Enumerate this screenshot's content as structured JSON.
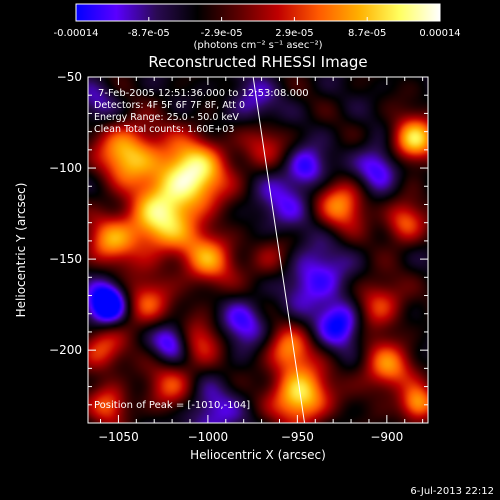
{
  "colorbar": {
    "tick_labels": [
      "-0.00014",
      "-8.7e-05",
      "-2.9e-05",
      "2.9e-05",
      "8.7e-05",
      "0.00014"
    ],
    "unit_label": "(photons cm⁻² s⁻¹ asec⁻²)",
    "colors": [
      "#0000ff",
      "#5a00ff",
      "#2a0a52",
      "#000000",
      "#5a0000",
      "#c00000",
      "#ff5a00",
      "#ffb000",
      "#ffff60",
      "#ffffff"
    ]
  },
  "chart_data": {
    "type": "heatmap",
    "title": "Reconstructed RHESSI Image",
    "xlabel": "Heliocentric X (arcsec)",
    "ylabel": "Heliocentric Y (arcsec)",
    "xlim": [
      -1067,
      -877
    ],
    "ylim": [
      -240,
      -50
    ],
    "x_ticks": [
      -1050,
      -1000,
      -950,
      -900
    ],
    "y_ticks": [
      -50,
      -100,
      -150,
      -200
    ],
    "x_tick_labels": [
      "−1050",
      "−1000",
      "−950",
      "−900"
    ],
    "y_tick_labels": [
      "−50",
      "−100",
      "−150",
      "−200"
    ],
    "info": [
      "7-Feb-2005 12:51:36.000 to 12:53:08.000",
      "Detectors: 4F 5F 6F 7F 8F, Att 0",
      "Energy Range: 25.0 - 50.0 keV",
      "Clean    Total counts: 1.60E+03"
    ],
    "peak_label": "Position of Peak = [-1010,-104]",
    "peak": [
      -1010,
      -104
    ],
    "limb_line": [
      [
        -975,
        -48
      ],
      [
        -946,
        -240
      ]
    ],
    "hotspots": [
      {
        "x": -1010,
        "y": -104,
        "amp": 1.0,
        "s": 14
      },
      {
        "x": -1045,
        "y": -92,
        "amp": 0.75,
        "s": 12
      },
      {
        "x": -1028,
        "y": -130,
        "amp": 0.8,
        "s": 13
      },
      {
        "x": -1000,
        "y": -150,
        "amp": 0.6,
        "s": 11
      },
      {
        "x": -1055,
        "y": -140,
        "amp": 0.55,
        "s": 10
      },
      {
        "x": -1035,
        "y": -175,
        "amp": 0.5,
        "s": 10
      },
      {
        "x": -1005,
        "y": -195,
        "amp": 0.45,
        "s": 9
      },
      {
        "x": -970,
        "y": -88,
        "amp": 0.35,
        "s": 10
      },
      {
        "x": -965,
        "y": -150,
        "amp": 0.3,
        "s": 9
      },
      {
        "x": -948,
        "y": -225,
        "amp": 0.9,
        "s": 11
      },
      {
        "x": -955,
        "y": -200,
        "amp": 0.55,
        "s": 9
      },
      {
        "x": -925,
        "y": -120,
        "amp": 0.6,
        "s": 10
      },
      {
        "x": -885,
        "y": -85,
        "amp": 0.85,
        "s": 9
      },
      {
        "x": -890,
        "y": -130,
        "amp": 0.55,
        "s": 8
      },
      {
        "x": -905,
        "y": -175,
        "amp": 0.5,
        "s": 10
      },
      {
        "x": -900,
        "y": -210,
        "amp": 0.6,
        "s": 10
      },
      {
        "x": -883,
        "y": -230,
        "amp": 0.7,
        "s": 7
      },
      {
        "x": -1060,
        "y": -200,
        "amp": 0.5,
        "s": 9
      },
      {
        "x": -1020,
        "y": -220,
        "amp": 0.45,
        "s": 10
      },
      {
        "x": -1055,
        "y": -230,
        "amp": 0.5,
        "s": 8
      },
      {
        "x": -1057,
        "y": -175,
        "amp": -0.9,
        "s": 8
      },
      {
        "x": -1000,
        "y": -235,
        "amp": -0.35,
        "s": 12
      },
      {
        "x": -1020,
        "y": -195,
        "amp": -0.5,
        "s": 8
      },
      {
        "x": -940,
        "y": -160,
        "amp": -0.45,
        "s": 12
      },
      {
        "x": -925,
        "y": -185,
        "amp": -0.55,
        "s": 9
      },
      {
        "x": -905,
        "y": -100,
        "amp": -0.5,
        "s": 9
      },
      {
        "x": -960,
        "y": -120,
        "amp": -0.3,
        "s": 12
      },
      {
        "x": -975,
        "y": -65,
        "amp": -0.3,
        "s": 10
      },
      {
        "x": -1062,
        "y": -65,
        "amp": -0.25,
        "s": 8
      },
      {
        "x": -980,
        "y": -185,
        "amp": -0.4,
        "s": 9
      },
      {
        "x": -945,
        "y": -100,
        "amp": -0.45,
        "s": 8
      }
    ]
  },
  "footer": {
    "timestamp": "6-Jul-2013 22:12"
  }
}
